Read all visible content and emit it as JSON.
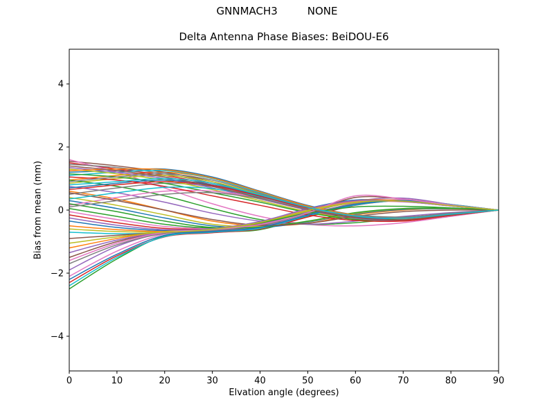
{
  "header": {
    "suptitle": "GNNMACH3         NONE"
  },
  "colors": {
    "background": "#ffffff",
    "axes": "#000000",
    "text": "#000000"
  },
  "chart_data": {
    "type": "line",
    "title": "Delta Antenna Phase Biases: BeiDOU-E6",
    "xlabel": "Elvation angle (degrees)",
    "ylabel": "Bias from mean (mm)",
    "xlim": [
      0,
      90
    ],
    "ylim": [
      -5.1,
      5.1
    ],
    "xticks": [
      0,
      10,
      20,
      30,
      40,
      50,
      60,
      70,
      80,
      90
    ],
    "xticklabels": [
      "0",
      "10",
      "20",
      "30",
      "40",
      "50",
      "60",
      "70",
      "80",
      "90"
    ],
    "yticks": [
      -4,
      -2,
      0,
      2,
      4
    ],
    "yticklabels": [
      "−4",
      "−2",
      "0",
      "2",
      "4"
    ],
    "grid": false,
    "legend": "none",
    "line_width": 1.5,
    "palette": [
      "#1f77b4",
      "#ff7f0e",
      "#2ca02c",
      "#d62728",
      "#9467bd",
      "#8c564b",
      "#e377c2",
      "#7f7f7f",
      "#bcbd22",
      "#17becf"
    ],
    "x": [
      0,
      10,
      20,
      30,
      40,
      50,
      60,
      70,
      80,
      90
    ],
    "series": [
      [
        1.2,
        1.25,
        1.3,
        1.05,
        0.6,
        0.15,
        -0.15,
        -0.25,
        -0.12,
        0
      ],
      [
        0.95,
        1.1,
        1.2,
        1.0,
        0.55,
        0.1,
        -0.2,
        -0.28,
        -0.14,
        0
      ],
      [
        -2.5,
        -1.55,
        -0.82,
        -0.7,
        -0.62,
        -0.2,
        0.18,
        0.32,
        0.18,
        0
      ],
      [
        1.5,
        1.3,
        1.1,
        0.8,
        0.4,
        0.0,
        -0.3,
        -0.35,
        -0.18,
        0
      ],
      [
        -1.9,
        -1.15,
        -0.72,
        -0.64,
        -0.52,
        -0.1,
        0.28,
        0.38,
        0.18,
        0
      ],
      [
        1.55,
        1.4,
        1.2,
        0.9,
        0.45,
        0.05,
        -0.25,
        -0.3,
        -0.15,
        0
      ],
      [
        1.6,
        1.2,
        0.7,
        0.2,
        -0.2,
        -0.45,
        -0.5,
        -0.4,
        -0.2,
        0
      ],
      [
        1.45,
        1.35,
        1.15,
        0.85,
        0.45,
        0.05,
        -0.22,
        -0.3,
        -0.16,
        0
      ],
      [
        0.85,
        1.0,
        1.1,
        0.9,
        0.5,
        0.1,
        -0.18,
        -0.25,
        -0.12,
        0
      ],
      [
        1.1,
        1.2,
        1.25,
        1.0,
        0.55,
        0.12,
        -0.18,
        -0.26,
        -0.13,
        0
      ],
      [
        -0.35,
        -0.55,
        -0.65,
        -0.6,
        -0.38,
        0.05,
        0.32,
        0.28,
        0.14,
        0
      ],
      [
        0.6,
        0.35,
        0.0,
        -0.35,
        -0.5,
        -0.42,
        -0.15,
        0.0,
        0.05,
        0
      ],
      [
        0.95,
        0.75,
        0.45,
        0.05,
        -0.3,
        -0.45,
        -0.4,
        -0.25,
        -0.1,
        0
      ],
      [
        -2.3,
        -1.45,
        -0.85,
        -0.72,
        -0.6,
        -0.22,
        0.15,
        0.3,
        0.16,
        0
      ],
      [
        0.75,
        0.55,
        0.25,
        -0.1,
        -0.35,
        -0.45,
        -0.35,
        -0.2,
        -0.08,
        0
      ],
      [
        -1.5,
        -1.0,
        -0.7,
        -0.62,
        -0.48,
        -0.1,
        0.4,
        0.35,
        0.17,
        0
      ],
      [
        -2.1,
        -1.3,
        -0.76,
        -0.66,
        -0.54,
        -0.15,
        0.22,
        0.33,
        0.17,
        0
      ],
      [
        0.5,
        0.7,
        0.85,
        0.75,
        0.45,
        0.08,
        -0.15,
        -0.22,
        -0.1,
        0
      ],
      [
        1.3,
        1.15,
        0.95,
        0.65,
        0.3,
        -0.05,
        -0.28,
        -0.32,
        -0.16,
        0
      ],
      [
        -0.7,
        -0.75,
        -0.72,
        -0.62,
        -0.4,
        0.0,
        0.28,
        0.27,
        0.13,
        0
      ],
      [
        0.3,
        0.05,
        -0.25,
        -0.5,
        -0.55,
        -0.38,
        -0.12,
        0.02,
        0.04,
        0
      ],
      [
        -1.2,
        -0.9,
        -0.68,
        -0.6,
        -0.44,
        -0.05,
        0.3,
        0.3,
        0.15,
        0
      ],
      [
        1.15,
        1.05,
        0.85,
        0.55,
        0.25,
        -0.08,
        -0.3,
        -0.33,
        -0.17,
        0
      ],
      [
        -0.15,
        -0.4,
        -0.58,
        -0.58,
        -0.38,
        0.03,
        0.28,
        0.27,
        0.13,
        0
      ],
      [
        1.35,
        1.2,
        1.0,
        0.7,
        0.35,
        0.0,
        -0.26,
        -0.32,
        -0.16,
        0
      ],
      [
        -0.9,
        -0.8,
        -0.7,
        -0.6,
        -0.42,
        -0.02,
        0.26,
        0.28,
        0.14,
        0
      ],
      [
        0.15,
        0.4,
        0.6,
        0.6,
        0.38,
        0.05,
        -0.18,
        -0.24,
        -0.12,
        0
      ],
      [
        -1.7,
        -1.1,
        -0.74,
        -0.65,
        -0.5,
        -0.12,
        0.2,
        0.3,
        0.16,
        0
      ],
      [
        0.4,
        0.15,
        -0.15,
        -0.45,
        -0.52,
        -0.36,
        -0.1,
        0.04,
        0.05,
        0
      ],
      [
        -2.4,
        -1.5,
        -0.84,
        -0.7,
        -0.58,
        -0.18,
        0.16,
        0.3,
        0.17,
        0
      ],
      [
        0.7,
        0.85,
        0.95,
        0.8,
        0.45,
        0.07,
        -0.2,
        -0.27,
        -0.13,
        0
      ],
      [
        -0.5,
        -0.62,
        -0.68,
        -0.6,
        -0.38,
        0.02,
        0.28,
        0.28,
        0.14,
        0
      ],
      [
        0.2,
        -0.05,
        -0.35,
        -0.55,
        -0.54,
        -0.35,
        -0.08,
        0.05,
        0.06,
        0
      ],
      [
        1.05,
        0.95,
        0.75,
        0.45,
        0.15,
        -0.15,
        -0.33,
        -0.34,
        -0.17,
        0
      ],
      [
        -1.35,
        -0.95,
        -0.7,
        -0.61,
        -0.45,
        -0.06,
        0.24,
        0.29,
        0.15,
        0
      ],
      [
        0.55,
        0.3,
        0.0,
        -0.3,
        -0.48,
        -0.42,
        -0.2,
        -0.05,
        0.0,
        0
      ],
      [
        -0.05,
        -0.3,
        -0.52,
        -0.57,
        -0.37,
        0.0,
        0.26,
        0.26,
        0.13,
        0
      ],
      [
        0.9,
        1.05,
        1.15,
        0.95,
        0.52,
        0.1,
        -0.17,
        -0.25,
        -0.12,
        0
      ],
      [
        -1.05,
        -0.85,
        -0.69,
        -0.6,
        -0.41,
        -0.04,
        0.24,
        0.29,
        0.15,
        0
      ],
      [
        0.35,
        0.55,
        0.72,
        0.68,
        0.42,
        0.06,
        -0.16,
        -0.23,
        -0.11,
        0
      ],
      [
        -2.2,
        -1.4,
        -0.8,
        -0.68,
        -0.55,
        -0.16,
        0.18,
        0.3,
        0.16,
        0
      ],
      [
        1.25,
        1.3,
        1.28,
        1.02,
        0.58,
        0.13,
        -0.16,
        -0.27,
        -0.13,
        0
      ],
      [
        0.05,
        -0.2,
        -0.45,
        -0.56,
        -0.4,
        -0.1,
        0.1,
        0.12,
        0.07,
        0
      ],
      [
        0.65,
        0.8,
        0.9,
        0.78,
        0.44,
        0.06,
        -0.19,
        -0.26,
        -0.13,
        0
      ],
      [
        -0.25,
        -0.48,
        -0.62,
        -0.59,
        -0.36,
        0.04,
        0.3,
        0.27,
        0.13,
        0
      ],
      [
        1.4,
        1.25,
        1.05,
        0.75,
        0.38,
        0.02,
        -0.24,
        -0.31,
        -0.15,
        0
      ],
      [
        -1.6,
        -1.05,
        -0.71,
        -0.62,
        -0.46,
        -0.09,
        0.45,
        0.35,
        0.16,
        0
      ],
      [
        0.1,
        0.3,
        0.5,
        0.55,
        0.36,
        0.04,
        -0.17,
        -0.22,
        -0.11,
        0
      ],
      [
        -0.6,
        -0.68,
        -0.7,
        -0.61,
        -0.39,
        -0.01,
        0.25,
        0.28,
        0.14,
        0
      ],
      [
        0.8,
        0.9,
        1.0,
        0.85,
        0.48,
        0.09,
        -0.19,
        -0.26,
        -0.13,
        0
      ]
    ]
  }
}
